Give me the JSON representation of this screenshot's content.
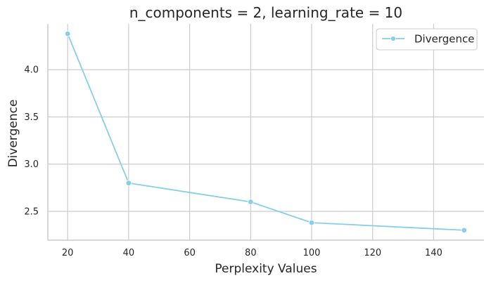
{
  "chart_data": {
    "type": "line",
    "title": "n_components = 2, learning_rate = 10",
    "xlabel": "Perplexity Values",
    "ylabel": "Divergence",
    "x": [
      20,
      40,
      80,
      100,
      150
    ],
    "series": [
      {
        "name": "Divergence",
        "values": [
          4.38,
          2.8,
          2.6,
          2.38,
          2.3
        ],
        "color": "#87ceeb"
      }
    ],
    "xlim": [
      13.5,
      156.5
    ],
    "ylim": [
      2.195,
      4.485
    ],
    "xticks": [
      20,
      40,
      60,
      80,
      100,
      120,
      140
    ],
    "xtick_labels": [
      "20",
      "40",
      "60",
      "80",
      "100",
      "120",
      "140"
    ],
    "yticks": [
      2.5,
      3.0,
      3.5,
      4.0
    ],
    "ytick_labels": [
      "2.5",
      "3.0",
      "3.5",
      "4.0"
    ],
    "grid": true,
    "legend_position": "top-right",
    "marker": "circle"
  }
}
